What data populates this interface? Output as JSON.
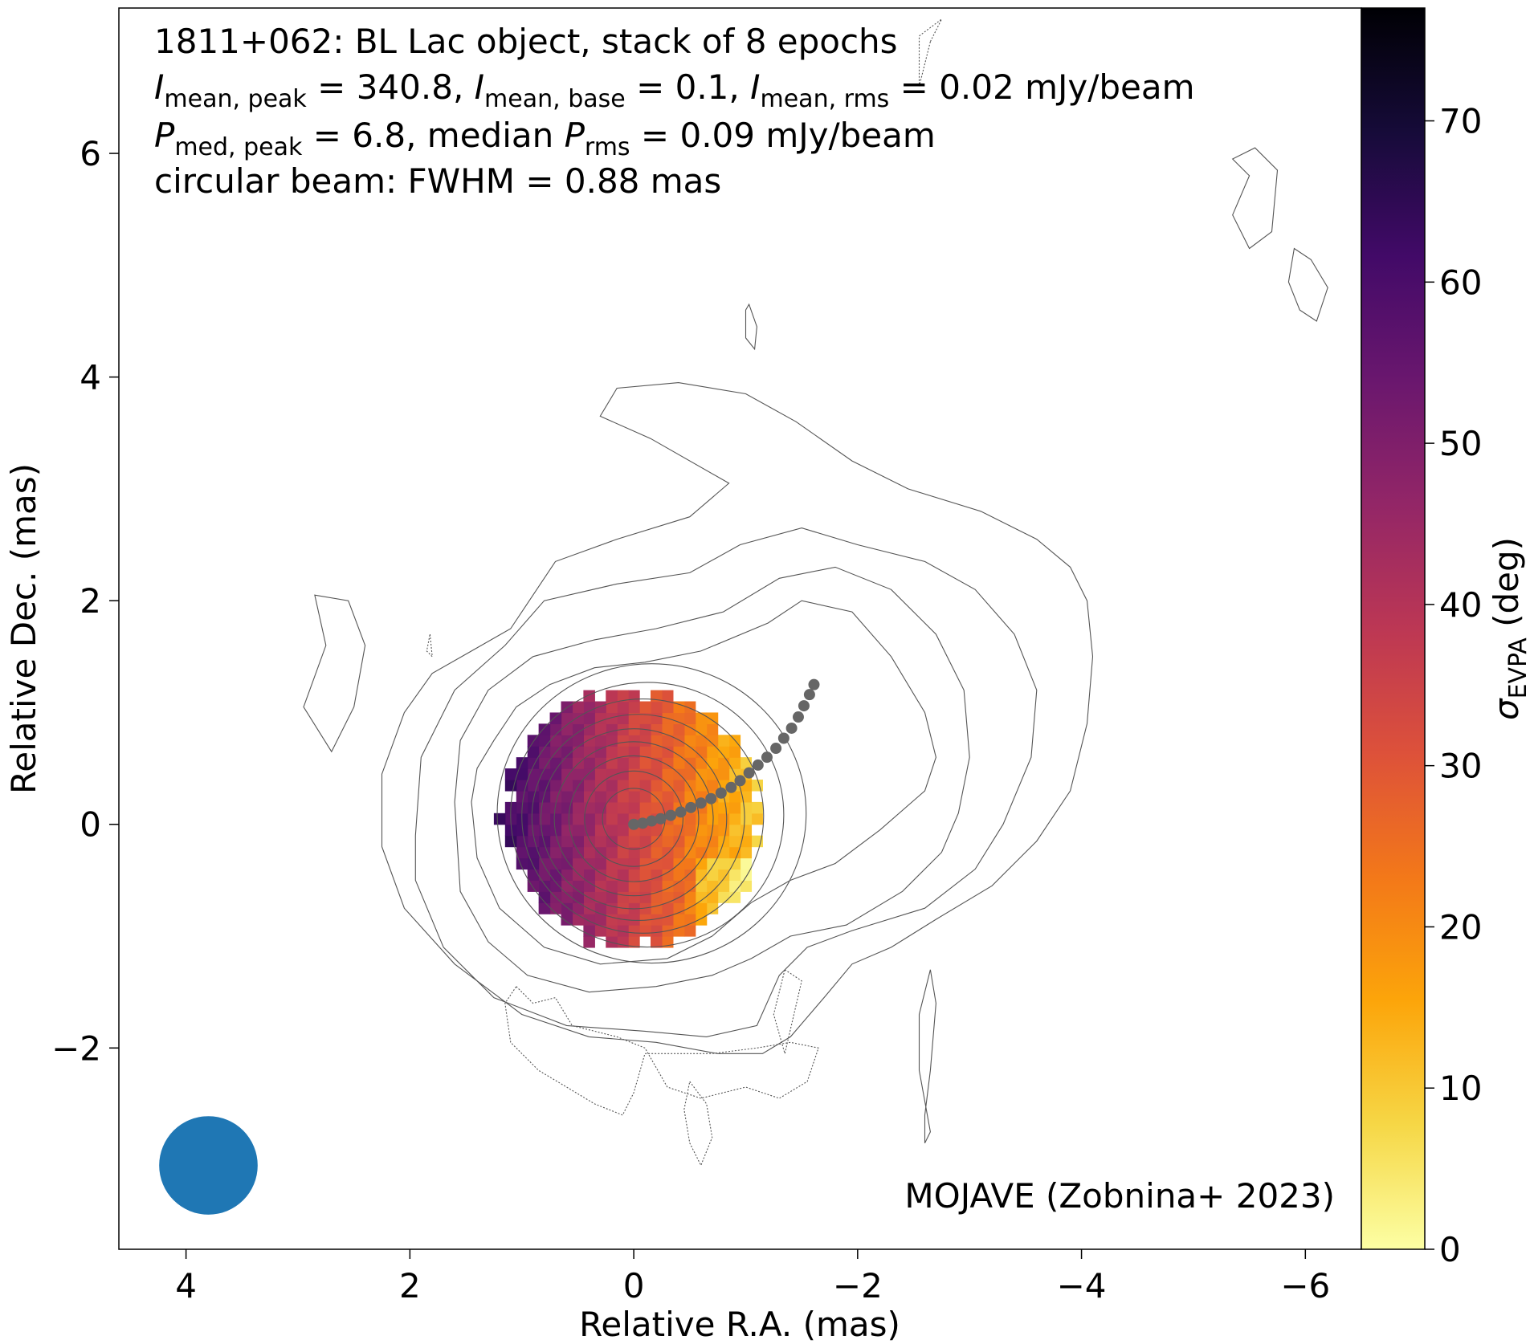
{
  "chart_data": {
    "type": "heatmap",
    "title_lines": [
      "1811+062: BL Lac object, stack of 8 epochs",
      "I_mean,peak = 340.8, I_mean,base = 0.1, I_mean,rms = 0.02 mJy/beam",
      "P_med,peak = 6.8, median P_rms = 0.09 mJy/beam",
      "circular beam: FWHM = 0.88 mas"
    ],
    "title": {
      "line1": "1811+062: BL Lac object, stack of 8 epochs",
      "i_sym": "I",
      "sub_peak": "mean, peak",
      "sub_base": "mean, base",
      "sub_rms": "mean, rms",
      "v_peak": " = 340.8, ",
      "v_base": " = 0.1, ",
      "v_rms": " = 0.02 mJy/beam",
      "p_sym": "P",
      "sub_pmed": "med, peak",
      "p_mid": " = 6.8, median ",
      "sub_prms": "rms",
      "p_end": " = 0.09 mJy/beam",
      "line4": "circular beam: FWHM = 0.88 mas"
    },
    "credit": "MOJAVE (Zobnina+ 2023)",
    "xlabel": "Relative R.A. (mas)",
    "ylabel": "Relative Dec. (mas)",
    "xlim": [
      4.6,
      -6.5
    ],
    "ylim": [
      -3.8,
      7.3
    ],
    "xticks": [
      4,
      2,
      0,
      -2,
      -4,
      -6
    ],
    "yticks": [
      -2,
      0,
      2,
      4,
      6
    ],
    "colorbar": {
      "label_sym": "σ",
      "label_sub": "EVPA",
      "label_unit": " (deg)",
      "range": [
        0,
        77
      ],
      "ticks": [
        0,
        10,
        20,
        30,
        40,
        50,
        60,
        70
      ],
      "colormap": "inferno_r",
      "stops": [
        "#fcffa4",
        "#f6d746",
        "#fca50a",
        "#f37819",
        "#dd513a",
        "#bc3754",
        "#932667",
        "#6a176e",
        "#420a68",
        "#160b39",
        "#000004"
      ]
    },
    "heatmap_region": {
      "center": [
        0.0,
        0.05
      ],
      "radius_mas": 1.15,
      "pixel_mas": 0.1,
      "value_range_deg": [
        8,
        62
      ],
      "gradient": "sigma_EVPA rises from ~10 deg on the west (right) edge to ~60 deg on the east (left) edge"
    },
    "stokes_i_contours": {
      "base_mJy_per_beam": 0.1,
      "closed_rings_radii_mas": [
        0.28,
        0.44,
        0.58,
        0.71,
        0.83,
        0.95,
        1.08,
        1.22,
        1.38
      ],
      "outer_contour_1": [
        [
          1.25,
          0.75
        ],
        [
          1.05,
          1.05
        ],
        [
          0.75,
          1.25
        ],
        [
          0.35,
          1.4
        ],
        [
          -0.1,
          1.45
        ],
        [
          -0.6,
          1.55
        ],
        [
          -1.2,
          1.8
        ],
        [
          -1.5,
          2.0
        ],
        [
          -1.95,
          1.9
        ],
        [
          -2.3,
          1.5
        ],
        [
          -2.6,
          1.0
        ],
        [
          -2.7,
          0.6
        ],
        [
          -2.6,
          0.3
        ],
        [
          -2.2,
          -0.05
        ],
        [
          -1.8,
          -0.35
        ],
        [
          -1.4,
          -0.5
        ],
        [
          -1.05,
          -0.7
        ],
        [
          -0.7,
          -1.0
        ],
        [
          -0.3,
          -1.2
        ],
        [
          0.3,
          -1.25
        ],
        [
          0.8,
          -1.1
        ],
        [
          1.2,
          -0.75
        ],
        [
          1.4,
          -0.3
        ],
        [
          1.45,
          0.2
        ],
        [
          1.4,
          0.5
        ],
        [
          1.25,
          0.75
        ]
      ],
      "outer_contour_2": [
        [
          1.6,
          0.2
        ],
        [
          1.55,
          0.75
        ],
        [
          1.3,
          1.2
        ],
        [
          0.9,
          1.5
        ],
        [
          0.35,
          1.65
        ],
        [
          -0.2,
          1.75
        ],
        [
          -0.8,
          1.9
        ],
        [
          -1.3,
          2.2
        ],
        [
          -1.8,
          2.3
        ],
        [
          -2.3,
          2.1
        ],
        [
          -2.7,
          1.7
        ],
        [
          -2.95,
          1.2
        ],
        [
          -3.0,
          0.6
        ],
        [
          -2.9,
          0.1
        ],
        [
          -2.75,
          -0.25
        ],
        [
          -2.4,
          -0.6
        ],
        [
          -1.9,
          -0.9
        ],
        [
          -1.4,
          -1.0
        ],
        [
          -1.05,
          -1.2
        ],
        [
          -0.7,
          -1.35
        ],
        [
          -0.2,
          -1.45
        ],
        [
          0.4,
          -1.5
        ],
        [
          0.95,
          -1.35
        ],
        [
          1.3,
          -1.05
        ],
        [
          1.55,
          -0.6
        ],
        [
          1.6,
          0.2
        ]
      ],
      "outer_contour_3": [
        [
          1.95,
          -0.1
        ],
        [
          1.9,
          0.6
        ],
        [
          1.6,
          1.2
        ],
        [
          1.15,
          1.6
        ],
        [
          0.8,
          2.0
        ],
        [
          0.15,
          2.15
        ],
        [
          -0.5,
          2.25
        ],
        [
          -0.95,
          2.5
        ],
        [
          -1.5,
          2.65
        ],
        [
          -2.0,
          2.5
        ],
        [
          -2.6,
          2.35
        ],
        [
          -3.05,
          2.1
        ],
        [
          -3.4,
          1.7
        ],
        [
          -3.6,
          1.2
        ],
        [
          -3.55,
          0.6
        ],
        [
          -3.3,
          0.0
        ],
        [
          -3.05,
          -0.4
        ],
        [
          -2.6,
          -0.75
        ],
        [
          -1.95,
          -0.95
        ],
        [
          -1.55,
          -1.1
        ],
        [
          -1.3,
          -1.35
        ],
        [
          -1.1,
          -1.8
        ],
        [
          -0.65,
          -1.9
        ],
        [
          -0.1,
          -1.85
        ],
        [
          0.6,
          -1.8
        ],
        [
          1.25,
          -1.55
        ],
        [
          1.7,
          -1.1
        ],
        [
          1.95,
          -0.5
        ],
        [
          1.95,
          -0.1
        ]
      ],
      "outer_contour_4": [
        [
          1.1,
          1.75
        ],
        [
          0.7,
          2.35
        ],
        [
          0.15,
          2.55
        ],
        [
          -0.5,
          2.75
        ],
        [
          -0.85,
          3.05
        ],
        [
          -0.15,
          3.45
        ],
        [
          0.3,
          3.65
        ],
        [
          0.15,
          3.9
        ],
        [
          -0.4,
          3.95
        ],
        [
          -1.0,
          3.85
        ],
        [
          -1.45,
          3.6
        ],
        [
          -1.95,
          3.25
        ],
        [
          -2.45,
          3.0
        ],
        [
          -3.1,
          2.8
        ],
        [
          -3.6,
          2.55
        ],
        [
          -3.9,
          2.3
        ],
        [
          -4.05,
          2.0
        ],
        [
          -4.1,
          1.5
        ],
        [
          -4.05,
          0.9
        ],
        [
          -3.9,
          0.3
        ],
        [
          -3.6,
          -0.15
        ],
        [
          -3.2,
          -0.55
        ],
        [
          -2.7,
          -0.85
        ],
        [
          -2.3,
          -1.1
        ],
        [
          -1.95,
          -1.25
        ],
        [
          -1.7,
          -1.55
        ],
        [
          -1.4,
          -1.9
        ],
        [
          -1.15,
          -2.05
        ],
        [
          -0.75,
          -2.05
        ],
        [
          -0.2,
          -1.95
        ],
        [
          0.4,
          -1.9
        ],
        [
          1.0,
          -1.7
        ],
        [
          1.6,
          -1.25
        ],
        [
          2.05,
          -0.75
        ],
        [
          2.25,
          -0.2
        ],
        [
          2.25,
          0.45
        ],
        [
          2.05,
          1.0
        ],
        [
          1.8,
          1.35
        ],
        [
          1.45,
          1.55
        ],
        [
          1.1,
          1.75
        ]
      ],
      "islands": [
        [
          [
            2.85,
            2.05
          ],
          [
            2.75,
            1.6
          ],
          [
            2.95,
            1.05
          ],
          [
            2.7,
            0.65
          ],
          [
            2.5,
            1.05
          ],
          [
            2.4,
            1.6
          ],
          [
            2.55,
            2.0
          ],
          [
            2.85,
            2.05
          ]
        ],
        [
          [
            -1.03,
            4.65
          ],
          [
            -1.1,
            4.45
          ],
          [
            -1.08,
            4.25
          ],
          [
            -1.0,
            4.35
          ],
          [
            -1.0,
            4.6
          ],
          [
            -1.03,
            4.65
          ]
        ],
        [
          [
            -5.5,
            5.8
          ],
          [
            -5.35,
            5.95
          ],
          [
            -5.55,
            6.05
          ],
          [
            -5.75,
            5.85
          ],
          [
            -5.7,
            5.3
          ],
          [
            -5.5,
            5.15
          ],
          [
            -5.35,
            5.45
          ],
          [
            -5.5,
            5.8
          ]
        ],
        [
          [
            -5.9,
            5.15
          ],
          [
            -6.05,
            5.05
          ],
          [
            -6.2,
            4.8
          ],
          [
            -6.1,
            4.5
          ],
          [
            -5.95,
            4.6
          ],
          [
            -5.85,
            4.85
          ],
          [
            -5.9,
            5.15
          ]
        ],
        [
          [
            -2.65,
            -1.3
          ],
          [
            -2.7,
            -1.6
          ],
          [
            -2.65,
            -2.2
          ],
          [
            -2.6,
            -2.6
          ],
          [
            -2.6,
            -2.85
          ],
          [
            -2.65,
            -2.75
          ],
          [
            -2.55,
            -2.2
          ],
          [
            -2.55,
            -1.7
          ],
          [
            -2.65,
            -1.3
          ]
        ]
      ]
    },
    "negative_contours": [
      [
        [
          1.05,
          -1.45
        ],
        [
          0.9,
          -1.6
        ],
        [
          0.7,
          -1.55
        ],
        [
          0.55,
          -1.8
        ],
        [
          0.35,
          -1.85
        ],
        [
          0.15,
          -1.9
        ],
        [
          -0.1,
          -2.0
        ],
        [
          -0.3,
          -2.35
        ],
        [
          -0.6,
          -2.45
        ],
        [
          -1.0,
          -2.35
        ],
        [
          -1.3,
          -2.45
        ],
        [
          -1.55,
          -2.3
        ],
        [
          -1.65,
          -2.0
        ],
        [
          -1.4,
          -1.95
        ],
        [
          -1.1,
          -2.0
        ],
        [
          -0.7,
          -2.05
        ],
        [
          -0.1,
          -2.05
        ],
        [
          0.0,
          -2.4
        ],
        [
          0.1,
          -2.6
        ],
        [
          0.35,
          -2.5
        ],
        [
          0.6,
          -2.35
        ],
        [
          0.85,
          -2.2
        ],
        [
          1.1,
          -1.95
        ],
        [
          1.15,
          -1.6
        ],
        [
          1.05,
          -1.45
        ]
      ],
      [
        [
          -0.5,
          -2.3
        ],
        [
          -0.65,
          -2.5
        ],
        [
          -0.7,
          -2.8
        ],
        [
          -0.6,
          -3.05
        ],
        [
          -0.5,
          -2.85
        ],
        [
          -0.45,
          -2.55
        ],
        [
          -0.5,
          -2.3
        ]
      ],
      [
        [
          -1.35,
          -1.3
        ],
        [
          -1.5,
          -1.4
        ],
        [
          -1.35,
          -2.05
        ],
        [
          -1.25,
          -1.7
        ],
        [
          -1.35,
          -1.3
        ]
      ],
      [
        [
          1.82,
          1.7
        ],
        [
          1.8,
          1.5
        ],
        [
          1.85,
          1.55
        ],
        [
          1.82,
          1.7
        ]
      ],
      [
        [
          -2.65,
          7.0
        ],
        [
          -2.75,
          7.2
        ],
        [
          -2.55,
          7.05
        ],
        [
          -2.55,
          6.6
        ],
        [
          -2.65,
          7.0
        ]
      ]
    ],
    "ridgeline_points": [
      [
        0.0,
        0.0
      ],
      [
        -0.08,
        0.01
      ],
      [
        -0.16,
        0.03
      ],
      [
        -0.24,
        0.05
      ],
      [
        -0.33,
        0.08
      ],
      [
        -0.42,
        0.11
      ],
      [
        -0.51,
        0.15
      ],
      [
        -0.6,
        0.19
      ],
      [
        -0.69,
        0.23
      ],
      [
        -0.78,
        0.28
      ],
      [
        -0.87,
        0.33
      ],
      [
        -0.95,
        0.39
      ],
      [
        -1.03,
        0.46
      ],
      [
        -1.11,
        0.53
      ],
      [
        -1.19,
        0.6
      ],
      [
        -1.27,
        0.68
      ],
      [
        -1.34,
        0.77
      ],
      [
        -1.41,
        0.86
      ],
      [
        -1.47,
        0.96
      ],
      [
        -1.52,
        1.06
      ],
      [
        -1.57,
        1.16
      ],
      [
        -1.61,
        1.25
      ]
    ],
    "beam": {
      "center_mas": [
        3.8,
        -3.05
      ],
      "fwhm_mas": 0.88,
      "color": "#1f77b4"
    },
    "colors": {
      "contour": "#555555",
      "ridgeline": "#666666",
      "beam": "#1f77b4"
    }
  }
}
